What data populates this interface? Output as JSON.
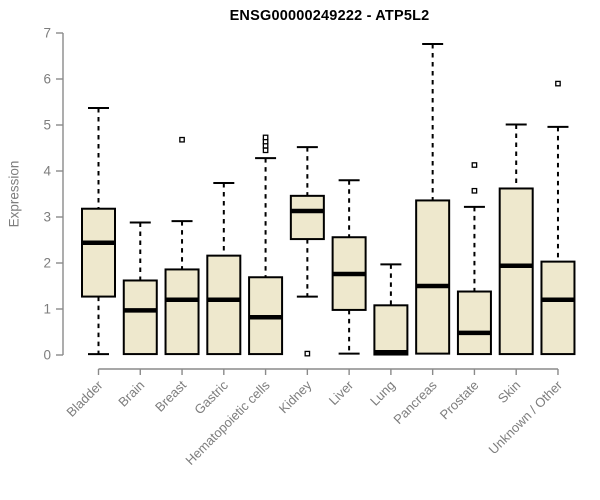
{
  "chart_data": {
    "type": "boxplot",
    "title": "ENSG00000249222 - ATP5L2",
    "ylabel": "Expression",
    "xlabel": "",
    "ylim": [
      0,
      7
    ],
    "yticks": [
      0,
      1,
      2,
      3,
      4,
      5,
      6,
      7
    ],
    "grid": false,
    "legend": "none",
    "categories": [
      "Bladder",
      "Brain",
      "Breast",
      "Gastric",
      "Hematopoietic cells",
      "Kidney",
      "Liver",
      "Lung",
      "Pancreas",
      "Prostate",
      "Skin",
      "Unknown / Other"
    ],
    "series": [
      {
        "category": "Bladder",
        "whisker_low": 0.02,
        "q1": 1.27,
        "median": 2.44,
        "q3": 3.18,
        "whisker_high": 5.37,
        "outliers": []
      },
      {
        "category": "Brain",
        "whisker_low": 0.0,
        "q1": 0.02,
        "median": 0.97,
        "q3": 1.62,
        "whisker_high": 2.88,
        "outliers": []
      },
      {
        "category": "Breast",
        "whisker_low": 0.0,
        "q1": 0.02,
        "median": 1.2,
        "q3": 1.86,
        "whisker_high": 2.91,
        "outliers": [
          4.68
        ]
      },
      {
        "category": "Gastric",
        "whisker_low": 0.0,
        "q1": 0.02,
        "median": 1.2,
        "q3": 2.16,
        "whisker_high": 3.74,
        "outliers": []
      },
      {
        "category": "Hematopoietic cells",
        "whisker_low": 0.0,
        "q1": 0.02,
        "median": 0.82,
        "q3": 1.69,
        "whisker_high": 4.28,
        "outliers": [
          4.45,
          4.55,
          4.64,
          4.73
        ]
      },
      {
        "category": "Kidney",
        "whisker_low": 1.27,
        "q1": 2.52,
        "median": 3.13,
        "q3": 3.46,
        "whisker_high": 4.52,
        "outliers": [
          0.03
        ]
      },
      {
        "category": "Liver",
        "whisker_low": 0.03,
        "q1": 0.98,
        "median": 1.76,
        "q3": 2.56,
        "whisker_high": 3.8,
        "outliers": []
      },
      {
        "category": "Lung",
        "whisker_low": 0.0,
        "q1": 0.01,
        "median": 0.06,
        "q3": 1.08,
        "whisker_high": 1.97,
        "outliers": []
      },
      {
        "category": "Pancreas",
        "whisker_low": 0.0,
        "q1": 0.03,
        "median": 1.5,
        "q3": 3.36,
        "whisker_high": 6.76,
        "outliers": []
      },
      {
        "category": "Prostate",
        "whisker_low": 0.0,
        "q1": 0.02,
        "median": 0.48,
        "q3": 1.38,
        "whisker_high": 3.22,
        "outliers": [
          3.57,
          4.13
        ]
      },
      {
        "category": "Skin",
        "whisker_low": 0.0,
        "q1": 0.02,
        "median": 1.94,
        "q3": 3.62,
        "whisker_high": 5.01,
        "outliers": []
      },
      {
        "category": "Unknown / Other",
        "whisker_low": 0.0,
        "q1": 0.02,
        "median": 1.2,
        "q3": 2.03,
        "whisker_high": 4.96,
        "outliers": [
          5.9
        ]
      }
    ],
    "colors": {
      "box_fill": "#EEE8CD",
      "box_border": "#000000",
      "median": "#000000",
      "whisker": "#000000",
      "outlier_stroke": "#000000",
      "axis_line": "#8a8a8a",
      "tick_text": "#7d7d7d",
      "title_text": "#000000",
      "background": "#ffffff"
    }
  }
}
